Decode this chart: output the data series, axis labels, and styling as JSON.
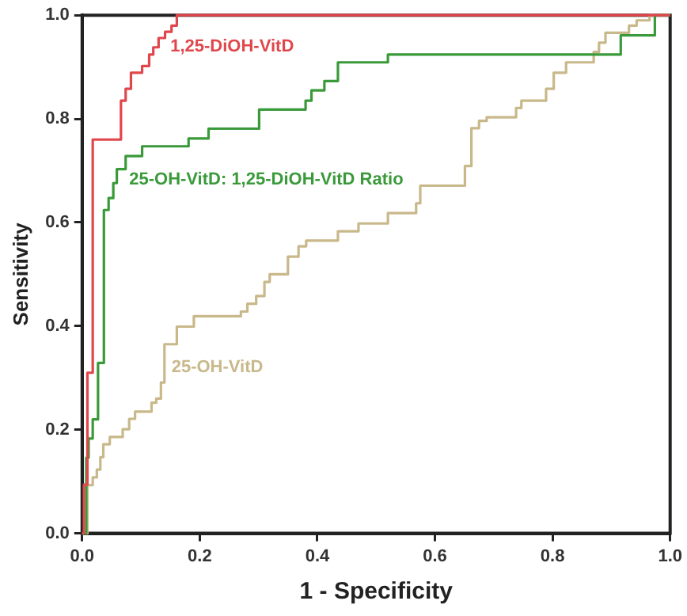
{
  "chart_data": {
    "type": "step",
    "xlabel": "1 - Specificity",
    "ylabel": "Sensitivity",
    "xlim": [
      0,
      1
    ],
    "ylim": [
      0,
      1
    ],
    "xticks": [
      {
        "value": 0,
        "label": "0.0"
      },
      {
        "value": 0.2,
        "label": "0.2"
      },
      {
        "value": 0.4,
        "label": "0.4"
      },
      {
        "value": 0.6,
        "label": "0.6"
      },
      {
        "value": 0.8,
        "label": "0.8"
      },
      {
        "value": 1,
        "label": "1.0"
      }
    ],
    "yticks": [
      {
        "value": 0,
        "label": "0.0"
      },
      {
        "value": 0.2,
        "label": "0.2"
      },
      {
        "value": 0.4,
        "label": "0.4"
      },
      {
        "value": 0.6,
        "label": "0.6"
      },
      {
        "value": 0.8,
        "label": "0.8"
      },
      {
        "value": 1,
        "label": "1.0"
      }
    ],
    "grid": false,
    "legend": false,
    "marker": "none",
    "series": [
      {
        "name": "1,25-DiOH-VitD",
        "color": "#e0474c",
        "x": [
          0,
          0.003,
          0.009,
          0.018,
          0.066,
          0.074,
          0.083,
          0.102,
          0.114,
          0.121,
          0.13,
          0.141,
          0.152,
          0.161,
          1
        ],
        "values": [
          0,
          0.094,
          0.31,
          0.76,
          0.835,
          0.858,
          0.889,
          0.902,
          0.924,
          0.938,
          0.956,
          0.968,
          0.98,
          1,
          1
        ]
      },
      {
        "name": "25-OH-VitD: 1,25-DiOH-VitD Ratio",
        "color": "#3a9a3a",
        "x": [
          0,
          0.007,
          0.011,
          0.018,
          0.027,
          0.037,
          0.045,
          0.053,
          0.059,
          0.074,
          0.102,
          0.181,
          0.215,
          0.301,
          0.38,
          0.39,
          0.412,
          0.435,
          0.52,
          0.916,
          0.974,
          1
        ],
        "values": [
          0,
          0.146,
          0.183,
          0.22,
          0.329,
          0.624,
          0.647,
          0.676,
          0.703,
          0.728,
          0.747,
          0.762,
          0.781,
          0.818,
          0.835,
          0.855,
          0.873,
          0.909,
          0.924,
          0.961,
          1,
          1
        ]
      },
      {
        "name": "25-OH-VitD",
        "color": "#c8b88a",
        "x": [
          0,
          0.009,
          0.018,
          0.025,
          0.031,
          0.036,
          0.047,
          0.069,
          0.08,
          0.09,
          0.118,
          0.126,
          0.134,
          0.14,
          0.161,
          0.19,
          0.27,
          0.281,
          0.296,
          0.31,
          0.319,
          0.35,
          0.368,
          0.381,
          0.435,
          0.47,
          0.52,
          0.568,
          0.575,
          0.651,
          0.662,
          0.675,
          0.688,
          0.738,
          0.747,
          0.789,
          0.802,
          0.823,
          0.87,
          0.879,
          0.89,
          0.93,
          0.943,
          0.965,
          1
        ],
        "values": [
          0,
          0.093,
          0.108,
          0.123,
          0.147,
          0.172,
          0.186,
          0.201,
          0.221,
          0.235,
          0.252,
          0.26,
          0.291,
          0.365,
          0.399,
          0.419,
          0.428,
          0.443,
          0.458,
          0.485,
          0.5,
          0.534,
          0.554,
          0.565,
          0.583,
          0.598,
          0.618,
          0.637,
          0.671,
          0.709,
          0.782,
          0.796,
          0.803,
          0.821,
          0.835,
          0.858,
          0.889,
          0.909,
          0.929,
          0.947,
          0.966,
          0.98,
          0.99,
          1,
          1
        ]
      }
    ]
  }
}
